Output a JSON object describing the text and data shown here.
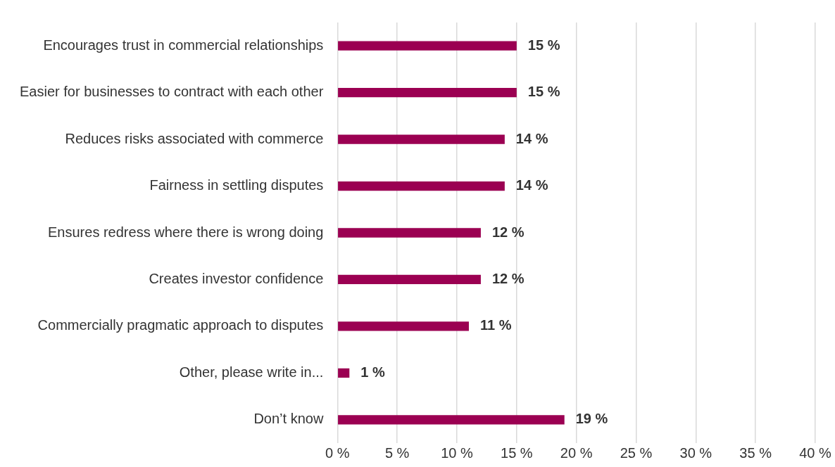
{
  "chart_data": {
    "type": "bar",
    "orientation": "horizontal",
    "categories": [
      "Encourages trust in commercial relationships",
      "Easier for businesses to contract with each other",
      "Reduces risks associated with commerce",
      "Fairness in settling disputes",
      "Ensures redress where there is wrong doing",
      "Creates investor confidence",
      "Commercially pragmatic approach to disputes",
      "Other, please write in...",
      "Don’t know"
    ],
    "values": [
      15,
      15,
      14,
      14,
      12,
      12,
      11,
      1,
      19
    ],
    "value_labels": [
      "15 %",
      "15 %",
      "14 %",
      "14 %",
      "12 %",
      "12 %",
      "11 %",
      "1 %",
      "19 %"
    ],
    "color": "#9b0052",
    "xlim": [
      0,
      40
    ],
    "xticks": [
      {
        "value": 0,
        "label": "0 %"
      },
      {
        "value": 5,
        "label": "5 %"
      },
      {
        "value": 10,
        "label": "10 %"
      },
      {
        "value": 15,
        "label": "15 %"
      },
      {
        "value": 20,
        "label": "20 %"
      },
      {
        "value": 25,
        "label": "25 %"
      },
      {
        "value": 30,
        "label": "30 %"
      },
      {
        "value": 35,
        "label": "35 %"
      },
      {
        "value": 40,
        "label": "40 %"
      }
    ],
    "grid": "x"
  }
}
